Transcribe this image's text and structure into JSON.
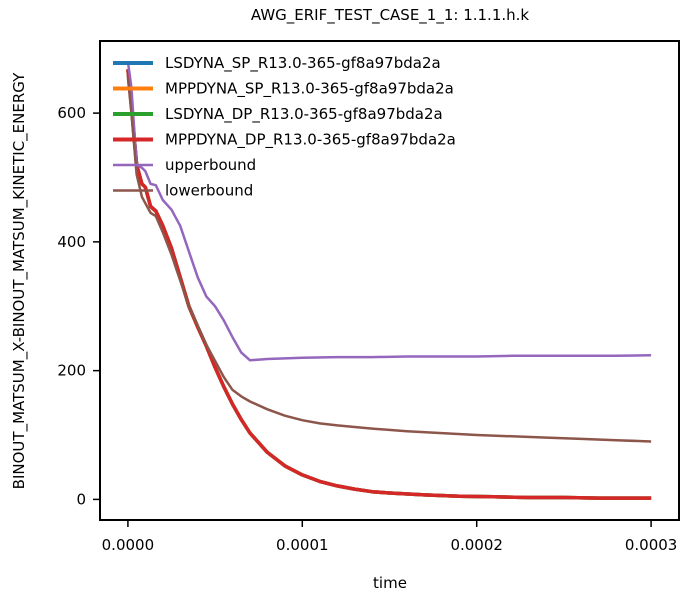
{
  "chart_data": {
    "type": "line",
    "title": "AWG_ERIF_TEST_CASE_1_1: 1.1.1.h.k",
    "xlabel": "time",
    "ylabel": "BINOUT_MATSUM_X-BINOUT_MATSUM_KINETIC_ENERGY",
    "xlim": [
      -1.6e-05,
      0.000316
    ],
    "ylim": [
      -32,
      712
    ],
    "x_ticks": [
      0.0,
      0.0001,
      0.0002,
      0.0003
    ],
    "x_tick_labels": [
      "0.0000",
      "0.0001",
      "0.0002",
      "0.0003"
    ],
    "y_ticks": [
      0,
      200,
      400,
      600
    ],
    "y_tick_labels": [
      "0",
      "200",
      "400",
      "600"
    ],
    "grid": false,
    "legend_position": "upper-left",
    "series": [
      {
        "name": "LSDYNA_SP_R13.0-365-gf8a97bda2a",
        "color": "#1f77b4",
        "x": [
          0.0,
          2e-06,
          5e-06,
          8e-06,
          1e-05,
          1.3e-05,
          1.6e-05,
          2e-05,
          2.5e-05,
          3e-05,
          3.5e-05,
          4e-05,
          4.5e-05,
          5e-05,
          5.5e-05,
          6e-05,
          6.5e-05,
          7e-05,
          8e-05,
          9e-05,
          0.0001,
          0.00011,
          0.00012,
          0.00013,
          0.00014,
          0.00015,
          0.00017,
          0.00019,
          0.00021,
          0.00023,
          0.00025,
          0.00027,
          0.00029,
          0.0003
        ],
        "values": [
          668,
          612,
          520,
          490,
          485,
          455,
          448,
          425,
          390,
          345,
          300,
          268,
          238,
          205,
          175,
          148,
          124,
          103,
          73,
          52,
          38,
          28,
          21,
          16,
          12,
          10,
          7,
          5,
          4,
          3,
          3,
          2,
          2,
          2
        ]
      },
      {
        "name": "MPPDYNA_SP_R13.0-365-gf8a97bda2a",
        "color": "#ff7f0e",
        "x": [
          0.0,
          2e-06,
          5e-06,
          8e-06,
          1e-05,
          1.3e-05,
          1.6e-05,
          2e-05,
          2.5e-05,
          3e-05,
          3.5e-05,
          4e-05,
          4.5e-05,
          5e-05,
          5.5e-05,
          6e-05,
          6.5e-05,
          7e-05,
          8e-05,
          9e-05,
          0.0001,
          0.00011,
          0.00012,
          0.00013,
          0.00014,
          0.00015,
          0.00017,
          0.00019,
          0.00021,
          0.00023,
          0.00025,
          0.00027,
          0.00029,
          0.0003
        ],
        "values": [
          668,
          612,
          520,
          490,
          485,
          455,
          448,
          425,
          390,
          345,
          300,
          268,
          238,
          205,
          175,
          148,
          124,
          103,
          73,
          52,
          38,
          28,
          21,
          16,
          12,
          10,
          7,
          5,
          4,
          3,
          3,
          2,
          2,
          2
        ]
      },
      {
        "name": "LSDYNA_DP_R13.0-365-gf8a97bda2a",
        "color": "#2ca02c",
        "x": [
          0.0,
          2e-06,
          5e-06,
          8e-06,
          1e-05,
          1.3e-05,
          1.6e-05,
          2e-05,
          2.5e-05,
          3e-05,
          3.5e-05,
          4e-05,
          4.5e-05,
          5e-05,
          5.5e-05,
          6e-05,
          6.5e-05,
          7e-05,
          8e-05,
          9e-05,
          0.0001,
          0.00011,
          0.00012,
          0.00013,
          0.00014,
          0.00015,
          0.00017,
          0.00019,
          0.00021,
          0.00023,
          0.00025,
          0.00027,
          0.00029,
          0.0003
        ],
        "values": [
          668,
          612,
          520,
          490,
          485,
          455,
          448,
          425,
          390,
          345,
          300,
          268,
          238,
          205,
          175,
          148,
          124,
          103,
          73,
          52,
          38,
          28,
          21,
          16,
          12,
          10,
          7,
          5,
          4,
          3,
          3,
          2,
          2,
          2
        ]
      },
      {
        "name": "MPPDYNA_DP_R13.0-365-gf8a97bda2a",
        "color": "#d62728",
        "x": [
          0.0,
          2e-06,
          5e-06,
          8e-06,
          1e-05,
          1.3e-05,
          1.6e-05,
          2e-05,
          2.5e-05,
          3e-05,
          3.5e-05,
          4e-05,
          4.5e-05,
          5e-05,
          5.5e-05,
          6e-05,
          6.5e-05,
          7e-05,
          8e-05,
          9e-05,
          0.0001,
          0.00011,
          0.00012,
          0.00013,
          0.00014,
          0.00015,
          0.00017,
          0.00019,
          0.00021,
          0.00023,
          0.00025,
          0.00027,
          0.00029,
          0.0003
        ],
        "values": [
          668,
          612,
          520,
          490,
          485,
          455,
          448,
          425,
          390,
          345,
          300,
          268,
          238,
          205,
          175,
          148,
          124,
          103,
          73,
          52,
          38,
          28,
          21,
          16,
          12,
          10,
          7,
          5,
          4,
          3,
          3,
          2,
          2,
          2
        ]
      },
      {
        "name": "upperbound",
        "color": "#9467bd",
        "x": [
          0.0,
          2e-06,
          5e-06,
          8e-06,
          1e-05,
          1.3e-05,
          1.6e-05,
          2e-05,
          2.5e-05,
          3e-05,
          3.5e-05,
          4e-05,
          4.5e-05,
          5e-05,
          5.5e-05,
          6e-05,
          6.5e-05,
          7e-05,
          8e-05,
          9e-05,
          0.0001,
          0.00012,
          0.00014,
          0.00016,
          0.00018,
          0.0002,
          0.00022,
          0.00024,
          0.00026,
          0.00028,
          0.0003
        ],
        "values": [
          680,
          640,
          520,
          515,
          510,
          490,
          488,
          465,
          450,
          425,
          385,
          345,
          315,
          300,
          278,
          252,
          228,
          216,
          218,
          219,
          220,
          221,
          221,
          222,
          222,
          222,
          223,
          223,
          223,
          223,
          224
        ]
      },
      {
        "name": "lowerbound",
        "color": "#8c564b",
        "x": [
          0.0,
          2e-06,
          5e-06,
          8e-06,
          1e-05,
          1.3e-05,
          1.6e-05,
          2e-05,
          2.5e-05,
          3e-05,
          3.5e-05,
          4e-05,
          4.5e-05,
          5e-05,
          5.5e-05,
          6e-05,
          6.5e-05,
          7e-05,
          8e-05,
          9e-05,
          0.0001,
          0.00011,
          0.00012,
          0.00014,
          0.00016,
          0.00018,
          0.0002,
          0.00022,
          0.00024,
          0.00026,
          0.00028,
          0.0003
        ],
        "values": [
          655,
          600,
          505,
          470,
          460,
          445,
          440,
          415,
          380,
          340,
          300,
          270,
          240,
          215,
          190,
          170,
          160,
          152,
          140,
          130,
          123,
          118,
          115,
          110,
          106,
          103,
          100,
          98,
          96,
          94,
          92,
          90
        ]
      }
    ]
  }
}
